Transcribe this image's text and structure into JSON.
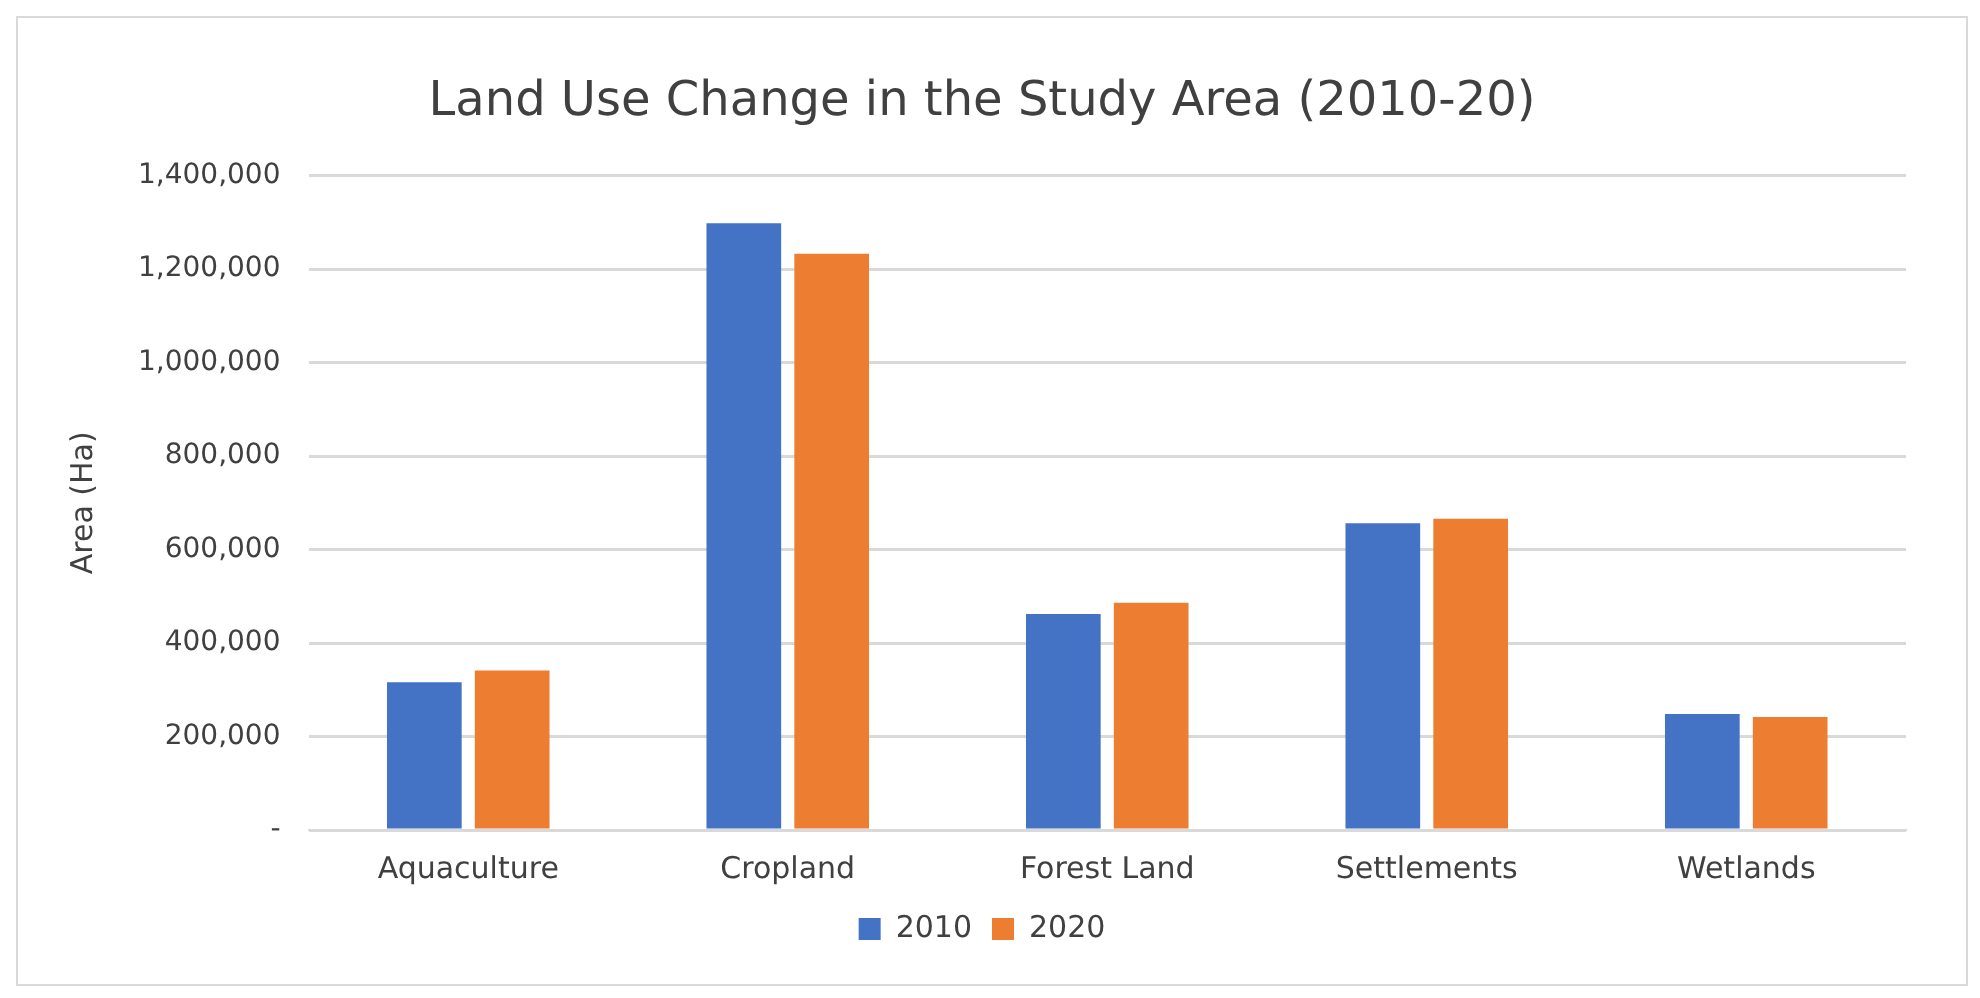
{
  "chart_data": {
    "type": "bar",
    "title": "Land Use Change in the Study Area (2010-20)",
    "ylabel": "Area (Ha)",
    "categories": [
      "Aquaculture",
      "Cropland",
      "Forest Land",
      "Settlements",
      "Wetlands"
    ],
    "series": [
      {
        "name": "2010",
        "color": "#4472c4",
        "values": [
          316000,
          1298000,
          462000,
          656000,
          248000
        ]
      },
      {
        "name": "2020",
        "color": "#ed7d31",
        "values": [
          341000,
          1233000,
          486000,
          666000,
          242000
        ]
      }
    ],
    "ylim": [
      0,
      1400000
    ],
    "yticks": [
      {
        "value": 0,
        "label": "-"
      },
      {
        "value": 200000,
        "label": "200,000"
      },
      {
        "value": 400000,
        "label": "400,000"
      },
      {
        "value": 600000,
        "label": "600,000"
      },
      {
        "value": 800000,
        "label": "800,000"
      },
      {
        "value": 1000000,
        "label": "1,000,000"
      },
      {
        "value": 1200000,
        "label": "1,200,000"
      },
      {
        "value": 1400000,
        "label": "1,400,000"
      }
    ],
    "grid": "y",
    "legend": "bottom"
  }
}
